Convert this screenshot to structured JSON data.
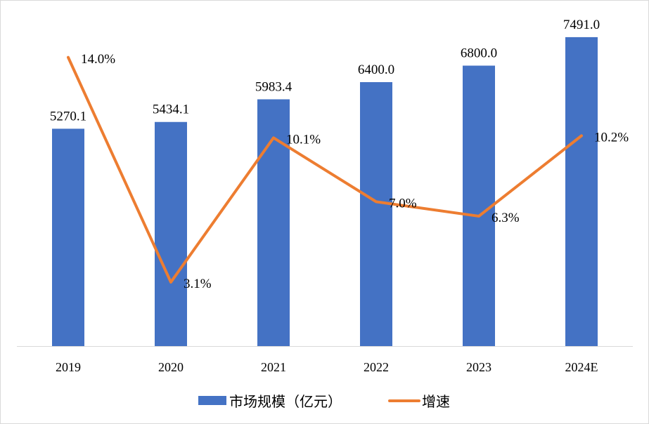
{
  "chart_data": {
    "type": "bar+line",
    "categories": [
      "2019",
      "2020",
      "2021",
      "2022",
      "2023",
      "2024E"
    ],
    "series": [
      {
        "name": "市场规模（亿元）",
        "type": "bar",
        "axis": "primary",
        "color": "#4472C4",
        "values": [
          5270.1,
          5434.1,
          5983.4,
          6400.0,
          6800.0,
          7491.0
        ],
        "labels": [
          "5270.1",
          "5434.1",
          "5983.4",
          "6400.0",
          "6800.0",
          "7491.0"
        ]
      },
      {
        "name": "增速",
        "type": "line",
        "axis": "secondary",
        "color": "#ED7D31",
        "values": [
          14.0,
          3.1,
          10.1,
          7.0,
          6.3,
          10.2
        ],
        "labels": [
          "14.0%",
          "3.1%",
          "10.1%",
          "7.0%",
          "6.3%",
          "10.2%"
        ]
      }
    ],
    "ylim": [
      0,
      8000
    ],
    "y2lim": [
      0,
      16
    ],
    "grid": false,
    "axes_visible": false,
    "legend": "bottom"
  }
}
